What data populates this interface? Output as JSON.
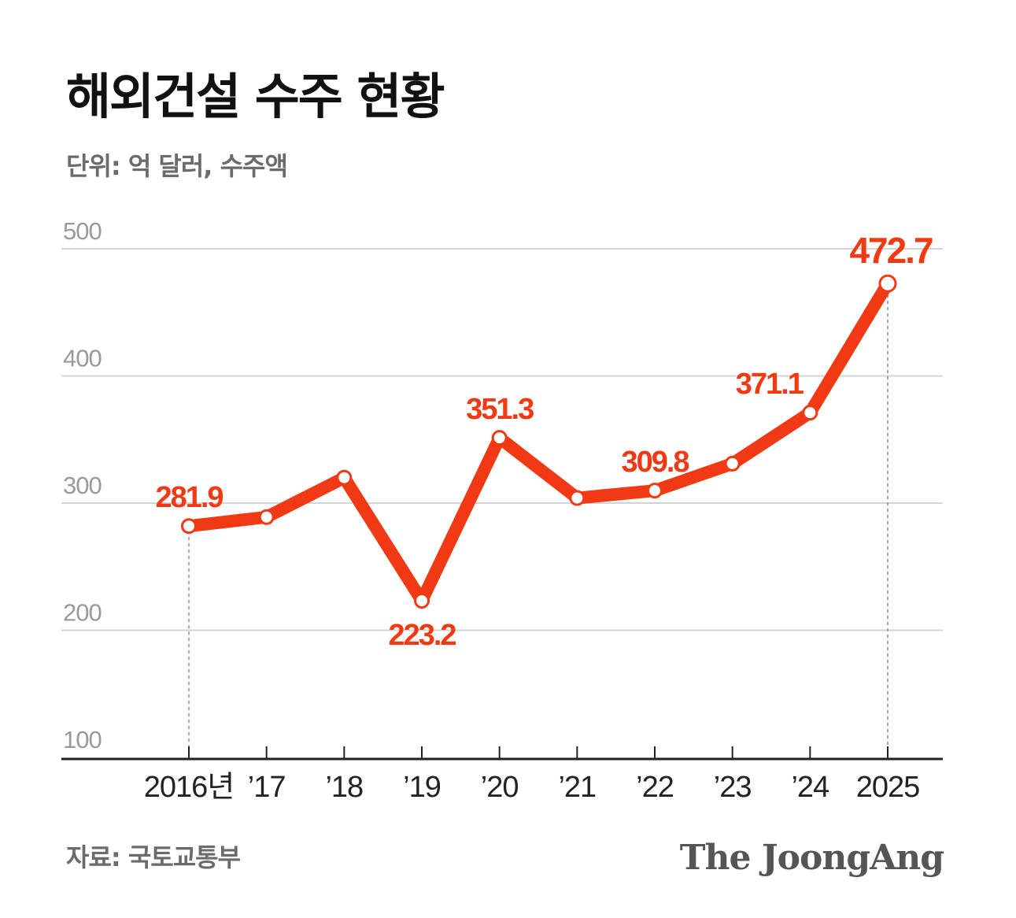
{
  "title": "해외건설 수주 현황",
  "subtitle": "단위: 억 달러, 수주액",
  "source": "자료: 국토교통부",
  "brand": "The JoongAng",
  "colors": {
    "line": "#f13a14",
    "grid": "#d4d4d4",
    "axis": "#222222",
    "ytick": "#9a9a9a"
  },
  "chart_data": {
    "type": "line",
    "categories": [
      "2016년",
      "’17",
      "’18",
      "’19",
      "’20",
      "’21",
      "’22",
      "’23",
      "’24",
      "2025"
    ],
    "values": [
      281.9,
      289,
      320,
      223.2,
      351.3,
      304,
      309.8,
      331,
      371.1,
      472.7
    ],
    "labeled_points": [
      0,
      3,
      4,
      6,
      8,
      9
    ],
    "ylim": [
      100,
      500
    ],
    "yticks": [
      "100",
      "200",
      "300",
      "400",
      "500"
    ],
    "grid": true,
    "guide_lines_at": [
      0,
      9
    ]
  }
}
